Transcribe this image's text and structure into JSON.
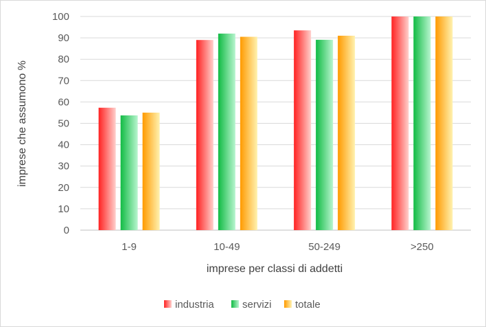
{
  "chart_data": {
    "type": "bar",
    "categories": [
      "1-9",
      "10-49",
      "50-249",
      ">250"
    ],
    "series": [
      {
        "name": "industria",
        "values": [
          57.3,
          89.0,
          93.5,
          100
        ],
        "color_dark": "#ff2222",
        "color_light": "#ffd0cc"
      },
      {
        "name": "servizi",
        "values": [
          53.7,
          92.0,
          89.1,
          100
        ],
        "color_dark": "#11bb44",
        "color_light": "#b8f5cf"
      },
      {
        "name": "totale",
        "values": [
          55.0,
          90.5,
          91.0,
          100
        ],
        "color_dark": "#ff9a00",
        "color_light": "#fff2b0"
      }
    ],
    "xlabel": "imprese per classi di addetti",
    "ylabel": "imprese che assumono %",
    "ylim": [
      0,
      100
    ],
    "yticks": [
      "0",
      "10",
      "20",
      "30",
      "40",
      "50",
      "60",
      "70",
      "80",
      "90",
      "100"
    ],
    "grid": true,
    "legend_position": "bottom"
  }
}
